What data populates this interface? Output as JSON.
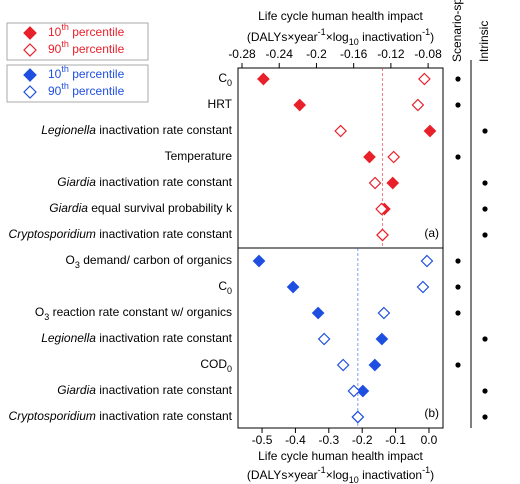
{
  "chart_data": [
    {
      "type": "scatter",
      "axis_position": "top",
      "panel_label": "(a)",
      "xlabel": [
        [
          {
            "t": "Life cycle human health impact"
          }
        ],
        [
          {
            "t": "(DALYs×year"
          },
          {
            "t": "-1",
            "sup": true
          },
          {
            "t": "×log"
          },
          {
            "t": "10",
            "sub": true
          },
          {
            "t": " inactivation"
          },
          {
            "t": "-1",
            "sup": true
          },
          {
            "t": ")"
          }
        ]
      ],
      "columns": [
        "Scenario-specific",
        "Intrinsic"
      ],
      "categories": [
        [
          {
            "t": "C"
          },
          {
            "t": "0",
            "sub": true
          }
        ],
        [
          {
            "t": "HRT"
          }
        ],
        [
          {
            "t": "Legionella",
            "italic": true
          },
          {
            "t": " inactivation rate constant"
          }
        ],
        [
          {
            "t": "Temperature"
          }
        ],
        [
          {
            "t": "Giardia",
            "italic": true
          },
          {
            "t": " inactivation rate constant"
          }
        ],
        [
          {
            "t": "Giardia",
            "italic": true
          },
          {
            "t": " equal survival probability k"
          }
        ],
        [
          {
            "t": "Cryptosporidium",
            "italic": true
          },
          {
            "t": " inactivation rate constant"
          }
        ]
      ],
      "classification": [
        0,
        0,
        1,
        0,
        1,
        1,
        1
      ],
      "series": [
        {
          "name": [
            {
              "t": "10"
            },
            {
              "t": "th",
              "sup": true
            },
            {
              "t": " percentile"
            }
          ],
          "color": "#e8202a",
          "marker": "filled",
          "values": [
            -0.257,
            -0.218,
            -0.078,
            -0.143,
            -0.118,
            -0.127,
            -0.129
          ]
        },
        {
          "name": [
            {
              "t": "90"
            },
            {
              "t": "th",
              "sup": true
            },
            {
              "t": " percentile"
            }
          ],
          "color": "#e8202a",
          "marker": "open",
          "values": [
            -0.084,
            -0.091,
            -0.174,
            -0.117,
            -0.137,
            -0.13,
            -0.129
          ]
        }
      ],
      "baseline": -0.129,
      "xlim": [
        -0.2843,
        -0.064
      ],
      "xticks": [
        -0.28,
        -0.24,
        -0.2,
        -0.16,
        -0.12,
        -0.08
      ]
    },
    {
      "type": "scatter",
      "axis_position": "bottom",
      "panel_label": "(b)",
      "xlabel": [
        [
          {
            "t": "Life cycle human health impact"
          }
        ],
        [
          {
            "t": "(DALYs×year"
          },
          {
            "t": "-1",
            "sup": true
          },
          {
            "t": "×log"
          },
          {
            "t": "10",
            "sub": true
          },
          {
            "t": " inactivation"
          },
          {
            "t": "-1",
            "sup": true
          },
          {
            "t": ")"
          }
        ]
      ],
      "categories": [
        [
          {
            "t": "O"
          },
          {
            "t": "3",
            "sub": true
          },
          {
            "t": " demand/ carbon of organics"
          }
        ],
        [
          {
            "t": "C"
          },
          {
            "t": "0",
            "sub": true
          }
        ],
        [
          {
            "t": "O"
          },
          {
            "t": "3",
            "sub": true
          },
          {
            "t": " reaction rate constant w/ organics"
          }
        ],
        [
          {
            "t": "Legionella",
            "italic": true
          },
          {
            "t": " inactivation rate constant"
          }
        ],
        [
          {
            "t": "COD"
          },
          {
            "t": "0",
            "sub": true
          }
        ],
        [
          {
            "t": "Giardia",
            "italic": true
          },
          {
            "t": " inactivation rate constant"
          }
        ],
        [
          {
            "t": "Cryptosporidium",
            "italic": true
          },
          {
            "t": " inactivation rate constant"
          }
        ]
      ],
      "classification": [
        0,
        0,
        0,
        1,
        0,
        1,
        1
      ],
      "series": [
        {
          "name": [
            {
              "t": "10"
            },
            {
              "t": "th",
              "sup": true
            },
            {
              "t": " percentile"
            }
          ],
          "color": "#1f4fe0",
          "marker": "filled",
          "values": [
            -0.509,
            -0.407,
            -0.332,
            -0.141,
            -0.162,
            -0.198,
            -0.213
          ]
        },
        {
          "name": [
            {
              "t": "90"
            },
            {
              "t": "th",
              "sup": true
            },
            {
              "t": " percentile"
            }
          ],
          "color": "#1f4fe0",
          "marker": "open",
          "values": [
            -0.006,
            -0.018,
            -0.135,
            -0.314,
            -0.257,
            -0.225,
            -0.213
          ]
        }
      ],
      "baseline": -0.213,
      "xlim": [
        -0.572,
        0.042
      ],
      "xticks": [
        -0.5,
        -0.4,
        -0.3,
        -0.2,
        -0.1,
        {
          "value": 0,
          "label": "0.0"
        }
      ]
    }
  ]
}
